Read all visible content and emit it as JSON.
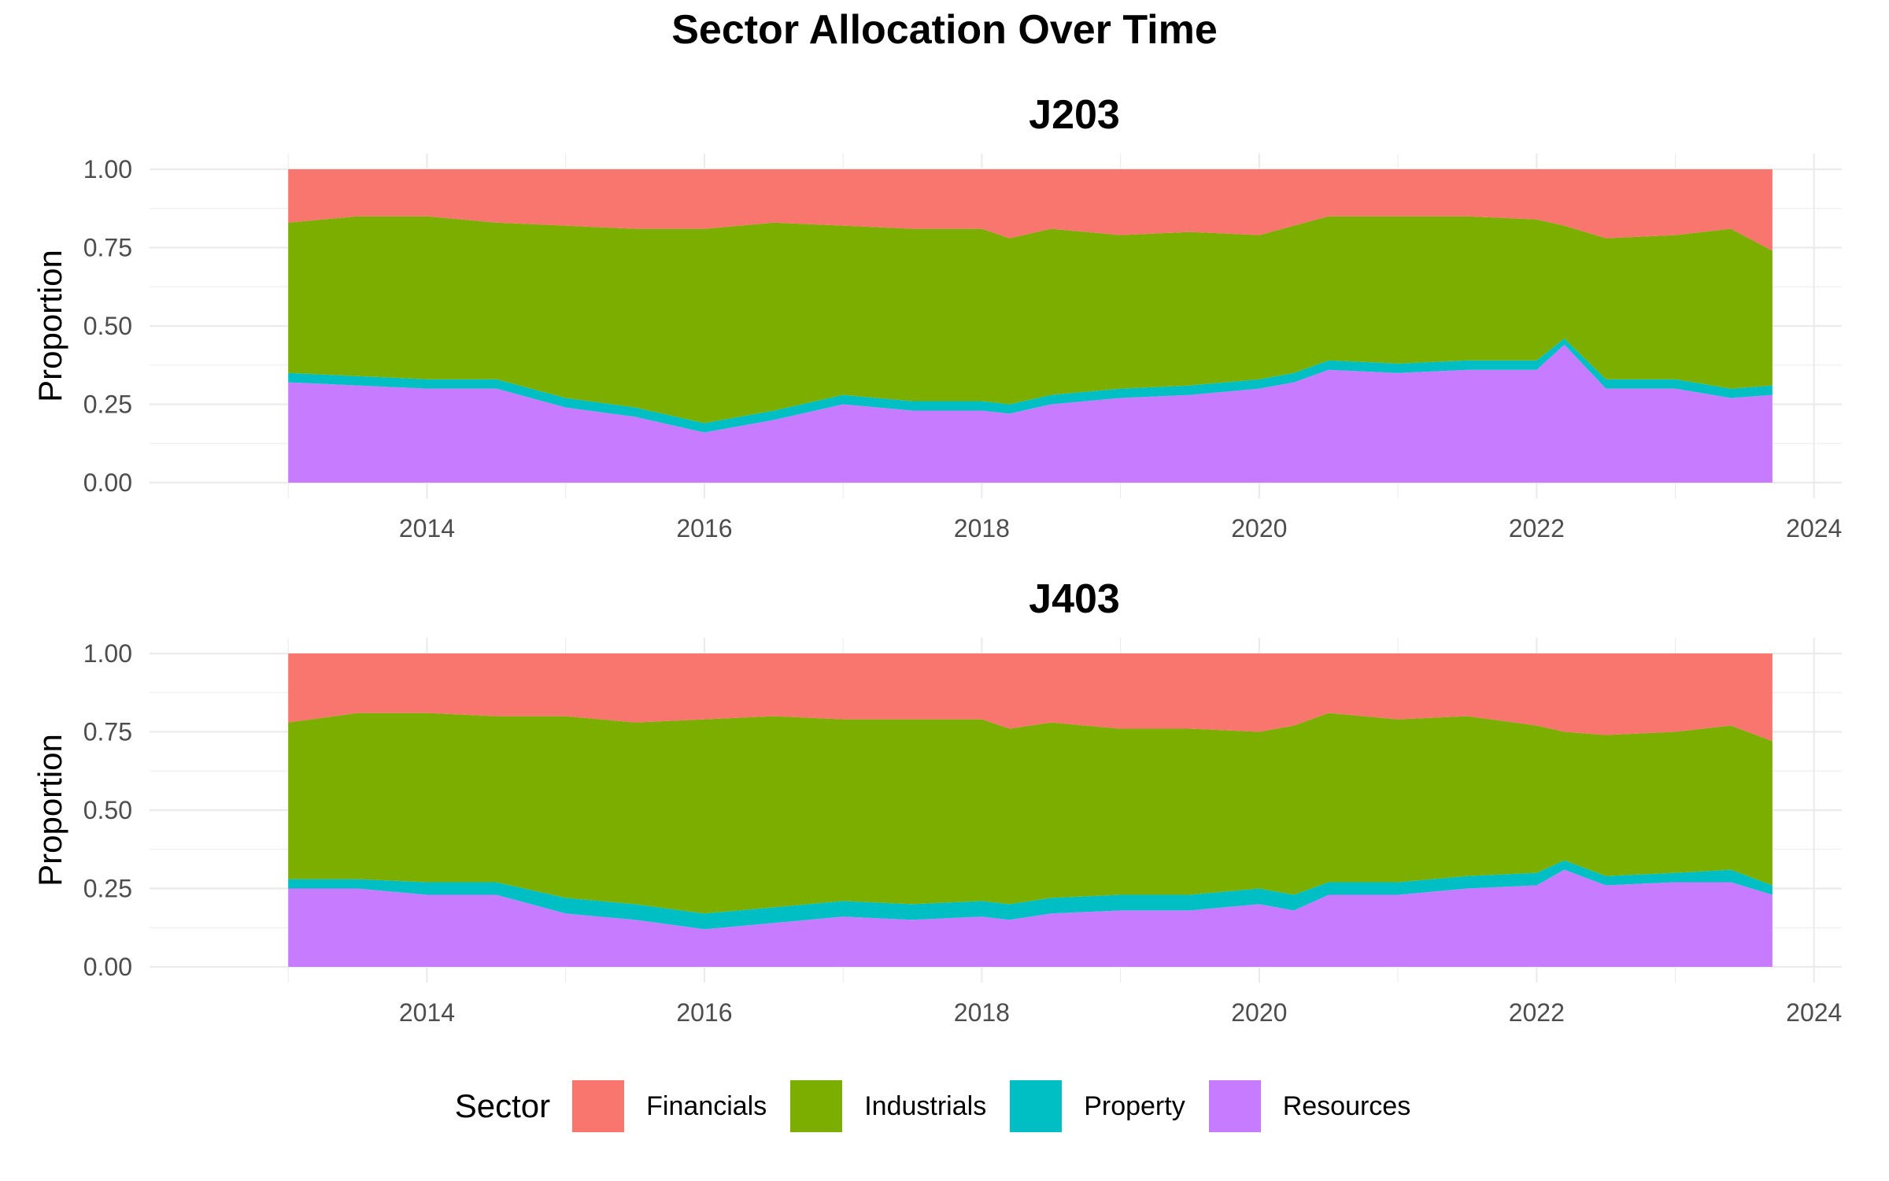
{
  "chart_data": {
    "title": "Sector Allocation Over Time",
    "type": "area",
    "stacked": "proportion",
    "legend": {
      "title": "Sector",
      "position": "bottom",
      "entries": [
        {
          "name": "Financials",
          "color": "#F8766D"
        },
        {
          "name": "Industrials",
          "color": "#7CAE00"
        },
        {
          "name": "Property",
          "color": "#00BFC4"
        },
        {
          "name": "Resources",
          "color": "#C77CFF"
        }
      ]
    },
    "x_ticks": [
      "2014",
      "2016",
      "2018",
      "2020",
      "2022",
      "2024"
    ],
    "y_ticks": [
      "0.00",
      "0.25",
      "0.50",
      "0.75",
      "1.00"
    ],
    "grid": true,
    "panels": [
      {
        "title": "J203",
        "xlabel": "",
        "ylabel": "Proportion",
        "xlim": [
          2013.0,
          2023.7
        ],
        "ylim": [
          0,
          1
        ],
        "x": [
          2013.0,
          2013.5,
          2014.0,
          2014.5,
          2015.0,
          2015.5,
          2016.0,
          2016.5,
          2017.0,
          2017.5,
          2018.0,
          2018.2,
          2018.5,
          2019.0,
          2019.5,
          2020.0,
          2020.25,
          2020.5,
          2021.0,
          2021.5,
          2022.0,
          2022.2,
          2022.5,
          2023.0,
          2023.4,
          2023.7
        ],
        "series": [
          {
            "name": "Resources",
            "values": [
              0.32,
              0.31,
              0.3,
              0.3,
              0.24,
              0.21,
              0.16,
              0.2,
              0.25,
              0.23,
              0.23,
              0.22,
              0.25,
              0.27,
              0.28,
              0.3,
              0.32,
              0.36,
              0.35,
              0.36,
              0.36,
              0.44,
              0.3,
              0.3,
              0.27,
              0.28
            ]
          },
          {
            "name": "Property",
            "values": [
              0.03,
              0.03,
              0.03,
              0.03,
              0.03,
              0.03,
              0.03,
              0.03,
              0.03,
              0.03,
              0.03,
              0.03,
              0.03,
              0.03,
              0.03,
              0.03,
              0.03,
              0.03,
              0.03,
              0.03,
              0.03,
              0.02,
              0.03,
              0.03,
              0.03,
              0.03
            ]
          },
          {
            "name": "Industrials",
            "values": [
              0.48,
              0.51,
              0.52,
              0.5,
              0.55,
              0.57,
              0.62,
              0.6,
              0.54,
              0.55,
              0.55,
              0.53,
              0.53,
              0.49,
              0.49,
              0.46,
              0.47,
              0.46,
              0.47,
              0.46,
              0.45,
              0.36,
              0.45,
              0.46,
              0.51,
              0.43
            ]
          },
          {
            "name": "Financials",
            "values": [
              0.17,
              0.15,
              0.15,
              0.17,
              0.18,
              0.19,
              0.19,
              0.17,
              0.18,
              0.19,
              0.19,
              0.22,
              0.19,
              0.21,
              0.2,
              0.21,
              0.18,
              0.15,
              0.15,
              0.15,
              0.16,
              0.18,
              0.22,
              0.21,
              0.19,
              0.26
            ]
          }
        ]
      },
      {
        "title": "J403",
        "xlabel": "",
        "ylabel": "Proportion",
        "xlim": [
          2013.0,
          2023.7
        ],
        "ylim": [
          0,
          1
        ],
        "x": [
          2013.0,
          2013.5,
          2014.0,
          2014.5,
          2015.0,
          2015.5,
          2016.0,
          2016.5,
          2017.0,
          2017.5,
          2018.0,
          2018.2,
          2018.5,
          2019.0,
          2019.5,
          2020.0,
          2020.25,
          2020.5,
          2021.0,
          2021.5,
          2022.0,
          2022.2,
          2022.5,
          2023.0,
          2023.4,
          2023.7
        ],
        "series": [
          {
            "name": "Resources",
            "values": [
              0.25,
              0.25,
              0.23,
              0.23,
              0.17,
              0.15,
              0.12,
              0.14,
              0.16,
              0.15,
              0.16,
              0.15,
              0.17,
              0.18,
              0.18,
              0.2,
              0.18,
              0.23,
              0.23,
              0.25,
              0.26,
              0.31,
              0.26,
              0.27,
              0.27,
              0.23
            ]
          },
          {
            "name": "Property",
            "values": [
              0.03,
              0.03,
              0.04,
              0.04,
              0.05,
              0.05,
              0.05,
              0.05,
              0.05,
              0.05,
              0.05,
              0.05,
              0.05,
              0.05,
              0.05,
              0.05,
              0.05,
              0.04,
              0.04,
              0.04,
              0.04,
              0.03,
              0.03,
              0.03,
              0.04,
              0.03
            ]
          },
          {
            "name": "Industrials",
            "values": [
              0.5,
              0.53,
              0.54,
              0.53,
              0.58,
              0.58,
              0.62,
              0.61,
              0.58,
              0.59,
              0.58,
              0.56,
              0.56,
              0.53,
              0.53,
              0.5,
              0.54,
              0.54,
              0.52,
              0.51,
              0.47,
              0.41,
              0.45,
              0.45,
              0.46,
              0.46
            ]
          },
          {
            "name": "Financials",
            "values": [
              0.22,
              0.19,
              0.19,
              0.2,
              0.2,
              0.22,
              0.21,
              0.2,
              0.21,
              0.21,
              0.21,
              0.24,
              0.22,
              0.24,
              0.24,
              0.25,
              0.23,
              0.19,
              0.21,
              0.2,
              0.23,
              0.25,
              0.26,
              0.25,
              0.23,
              0.28
            ]
          }
        ]
      }
    ]
  }
}
